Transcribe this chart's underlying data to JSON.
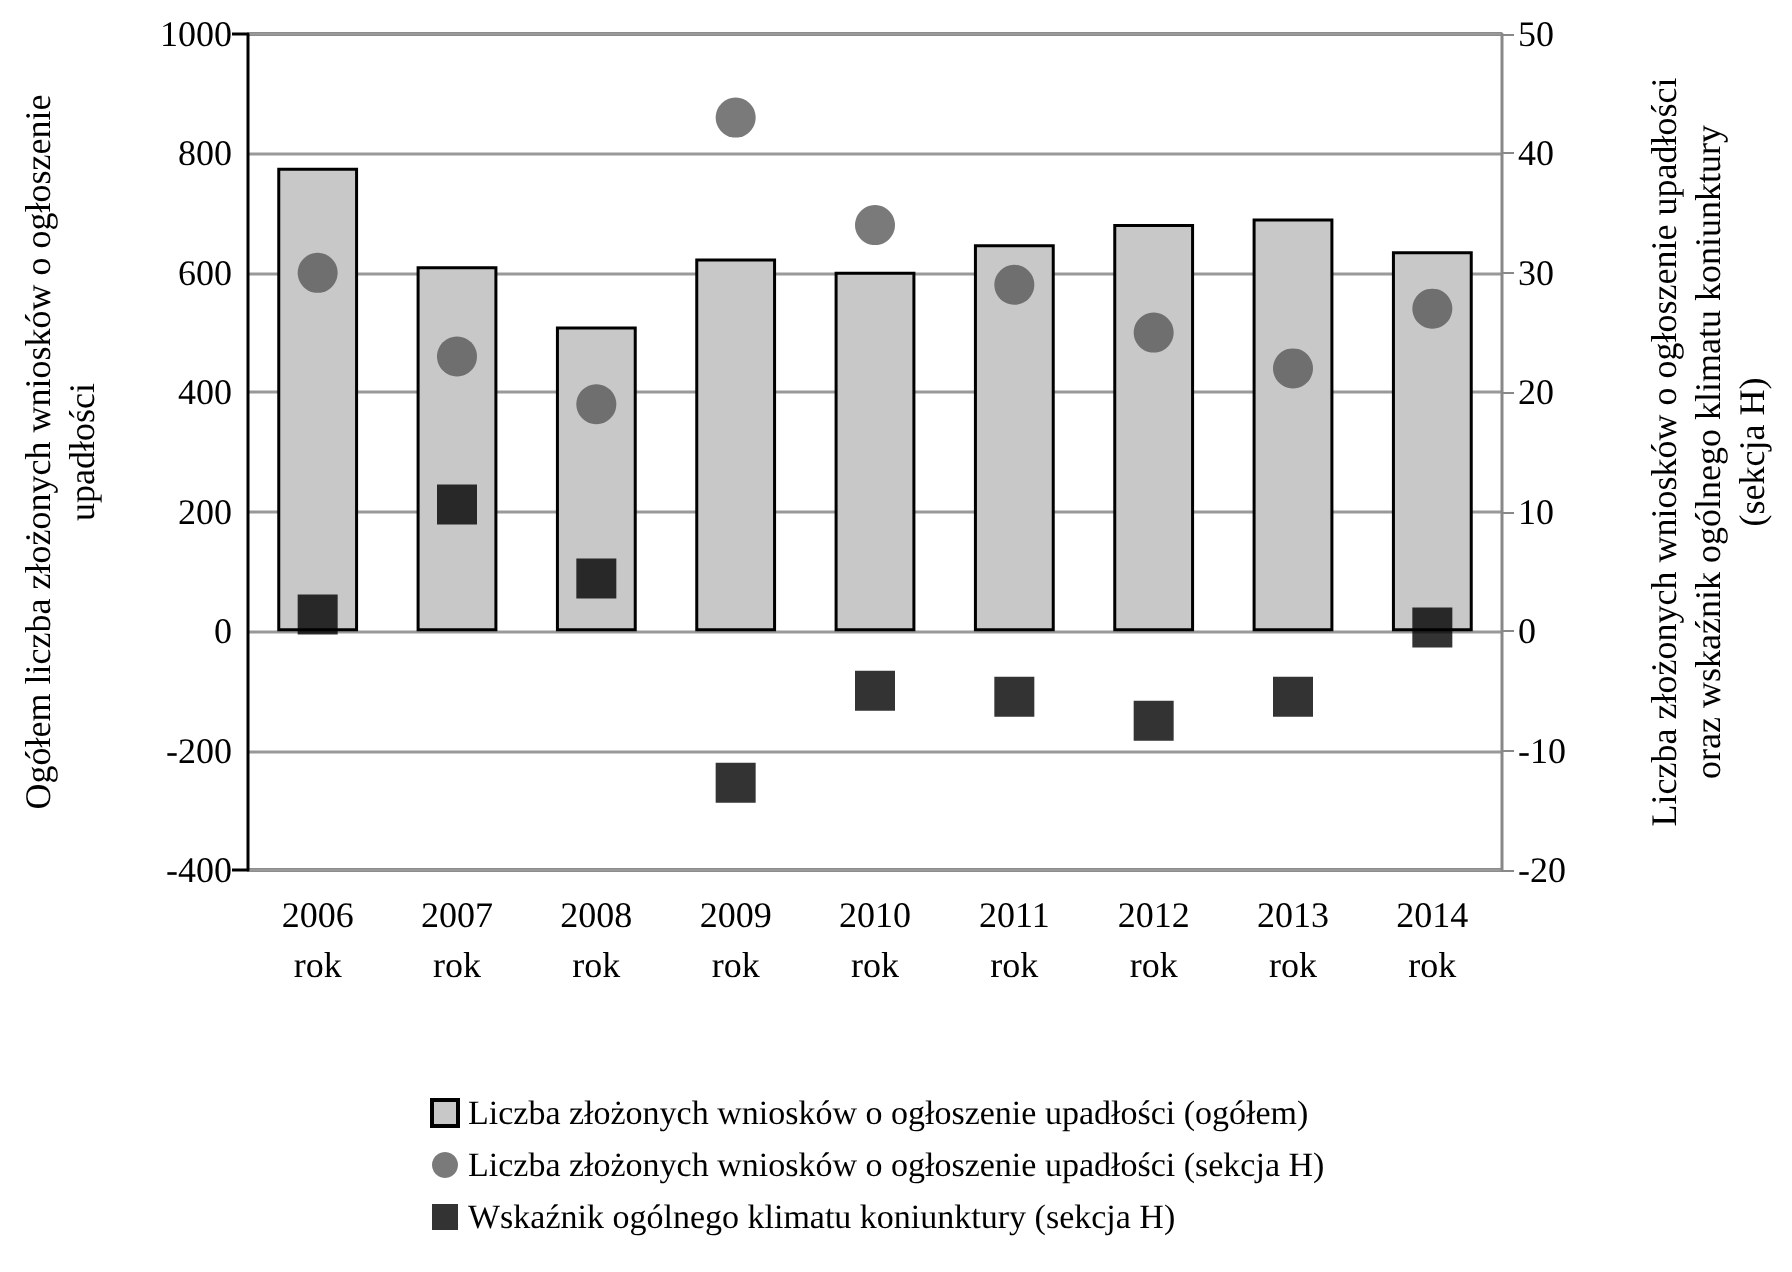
{
  "chart_data": {
    "type": "bar",
    "ylabel": "Ogółem liczba złożonych wniosków o ogłoszenie\nupadłości",
    "y2label": "Liczba złożonych wniosków o ogłoszenie upadłości\noraz wskaźnik ogólnego klimatu koniunktury\n(sekcja H)",
    "categories": [
      "2006\nrok",
      "2007\nrok",
      "2008\nrok",
      "2009\nrok",
      "2010\nrok",
      "2011\nrok",
      "2012\nrok",
      "2013\nrok",
      "2014\nrok"
    ],
    "series": [
      {
        "name": "Liczba złożonych wniosków o ogłoszenie upadłości (ogółem)",
        "color": "#c8c8c8",
        "values": [
          776,
          611,
          510,
          624,
          602,
          648,
          682,
          691,
          636
        ]
      },
      {
        "name": "Liczba złożonych wniosków o ogłoszenie upadłości (sekcja H)",
        "type": "scatter",
        "axis": "y2",
        "marker": "circle",
        "color": "#595959",
        "values": [
          30,
          23,
          19,
          43,
          34,
          29,
          25,
          22,
          27
        ]
      },
      {
        "name": "Wskaźnik ogólnego klimatu koniunktury (sekcja H)",
        "type": "scatter",
        "axis": "y2",
        "marker": "square",
        "color": "#000000",
        "values": [
          1.4,
          10.6,
          4.4,
          -12.7,
          -5,
          -5.5,
          -7.5,
          -5.5,
          0.3
        ]
      }
    ],
    "ylim": [
      -400,
      1000
    ],
    "yticks": [
      -400,
      -200,
      0,
      200,
      400,
      600,
      800,
      1000
    ],
    "y2lim": [
      -20,
      50
    ],
    "y2ticks": [
      -20,
      -10,
      0,
      10,
      20,
      30,
      40,
      50
    ],
    "grid": "y",
    "legend": "bottom"
  }
}
